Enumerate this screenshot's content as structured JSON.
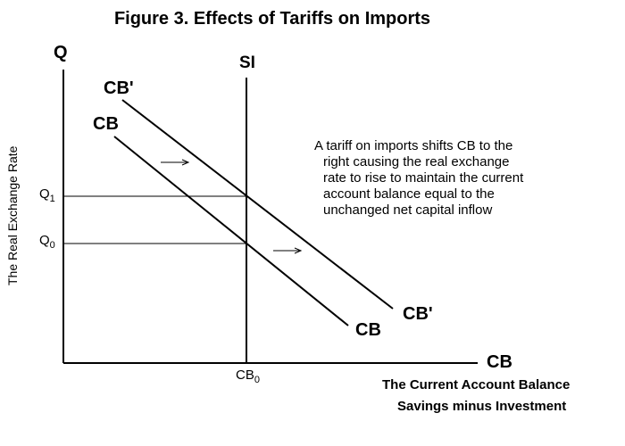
{
  "figure": {
    "title": "Figure 3.  Effects of Tariffs on Imports",
    "y_axis_symbol": "Q",
    "x_axis_symbol": "CB",
    "y_axis_label": "The Real Exchange Rate",
    "x_axis_caption_1": "The Current Account Balance",
    "x_axis_caption_2": "Savings minus Investment",
    "si_label": "SI",
    "cb_label": "CB",
    "cb_prime_label": "CB'",
    "q0": {
      "base": "Q",
      "sub": "0"
    },
    "q1": {
      "base": "Q",
      "sub": "1"
    },
    "cb0": {
      "base": "CB",
      "sub": "0"
    },
    "annotation_lines": [
      "A tariff on imports shifts CB to the",
      "right causing the real exchange",
      "rate to rise to maintain the current",
      "account balance equal to the",
      "unchanged net capital inflow"
    ]
  }
}
